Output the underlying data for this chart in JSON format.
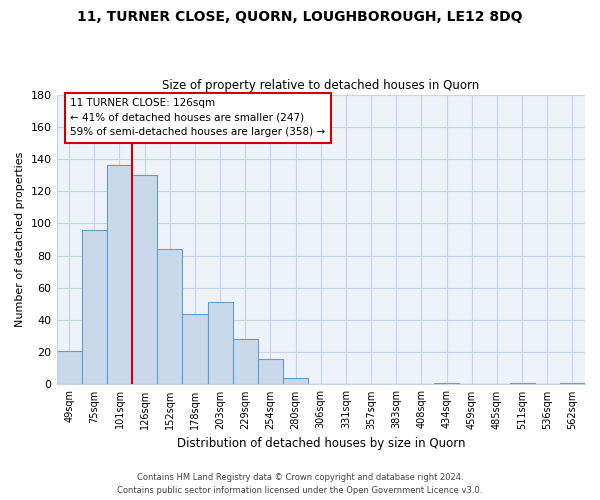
{
  "title": "11, TURNER CLOSE, QUORN, LOUGHBOROUGH, LE12 8DQ",
  "subtitle": "Size of property relative to detached houses in Quorn",
  "xlabel": "Distribution of detached houses by size in Quorn",
  "ylabel": "Number of detached properties",
  "bar_labels": [
    "49sqm",
    "75sqm",
    "101sqm",
    "126sqm",
    "152sqm",
    "178sqm",
    "203sqm",
    "229sqm",
    "254sqm",
    "280sqm",
    "306sqm",
    "331sqm",
    "357sqm",
    "383sqm",
    "408sqm",
    "434sqm",
    "459sqm",
    "485sqm",
    "511sqm",
    "536sqm",
    "562sqm"
  ],
  "bar_values": [
    21,
    96,
    136,
    130,
    84,
    44,
    51,
    28,
    16,
    4,
    0,
    0,
    0,
    0,
    0,
    1,
    0,
    0,
    1,
    0,
    1
  ],
  "bar_color": "#c9d9eb",
  "bar_edge_color": "#6699cc",
  "vline_index": 3,
  "vline_color": "#cc0000",
  "ylim": [
    0,
    180
  ],
  "yticks": [
    0,
    20,
    40,
    60,
    80,
    100,
    120,
    140,
    160,
    180
  ],
  "annotation_title": "11 TURNER CLOSE: 126sqm",
  "annotation_line1": "← 41% of detached houses are smaller (247)",
  "annotation_line2": "59% of semi-detached houses are larger (358) →",
  "footer_line1": "Contains HM Land Registry data © Crown copyright and database right 2024.",
  "footer_line2": "Contains public sector information licensed under the Open Government Licence v3.0.",
  "background_color": "#ffffff",
  "plot_bg_color": "#eef2f9",
  "grid_color": "#c8d4e8"
}
